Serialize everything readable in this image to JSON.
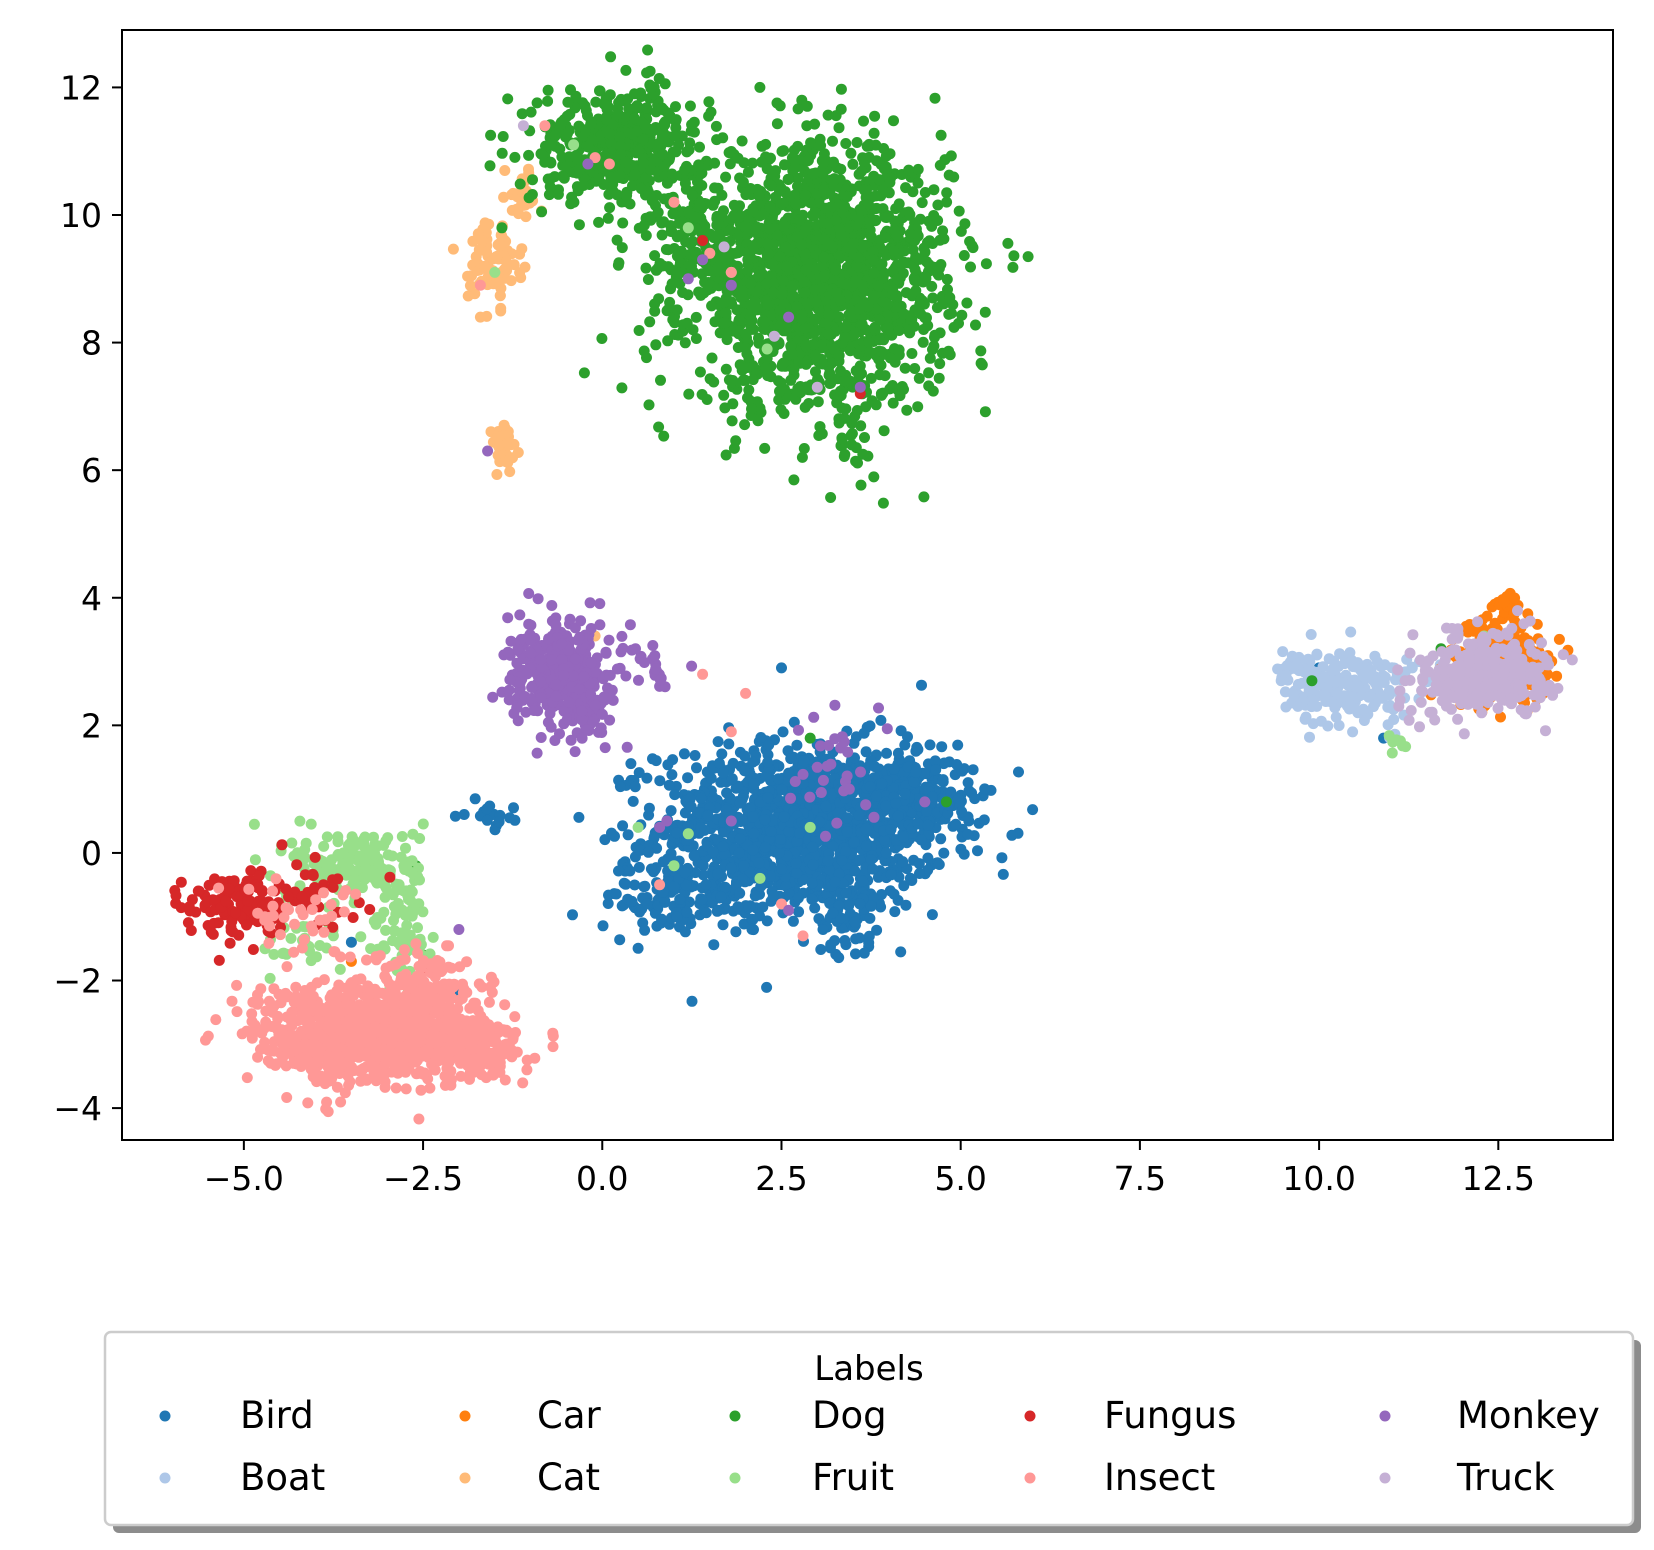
{
  "chart_data": {
    "type": "scatter",
    "title": "",
    "xlabel": "",
    "ylabel": "",
    "xlim": [
      -6.7,
      14.1
    ],
    "ylim": [
      -4.5,
      12.9
    ],
    "xticks": [
      -5.0,
      -2.5,
      0.0,
      2.5,
      5.0,
      7.5,
      10.0,
      12.5
    ],
    "xtick_labels": [
      "−5.0",
      "−2.5",
      "0.0",
      "2.5",
      "5.0",
      "7.5",
      "10.0",
      "12.5"
    ],
    "yticks": [
      -4,
      -2,
      0,
      2,
      4,
      6,
      8,
      10,
      12
    ],
    "ytick_labels": [
      "−4",
      "−2",
      "0",
      "2",
      "4",
      "6",
      "8",
      "10",
      "12"
    ],
    "grid": false,
    "legend": {
      "title": "Labels",
      "placement": "below-plot",
      "columns": 5
    },
    "series": [
      {
        "name": "Bird",
        "color": "#1f77b4",
        "clusters": [
          {
            "cx": 2.8,
            "cy": 0.4,
            "sx": 1.0,
            "sy": 0.65,
            "n": 1300
          },
          {
            "cx": 4.3,
            "cy": 0.9,
            "sx": 0.45,
            "sy": 0.3,
            "n": 220
          },
          {
            "cx": 1.2,
            "cy": -0.7,
            "sx": 0.6,
            "sy": 0.3,
            "n": 140
          },
          {
            "cx": 3.4,
            "cy": -1.0,
            "sx": 0.2,
            "sy": 0.3,
            "n": 50
          },
          {
            "cx": -1.6,
            "cy": 0.6,
            "sx": 0.15,
            "sy": 0.1,
            "n": 20
          }
        ],
        "points": [
          [
            -3.5,
            -1.4
          ],
          [
            10.0,
            2.9
          ],
          [
            10.9,
            1.8
          ],
          [
            0.4,
            1.4
          ],
          [
            2.5,
            2.9
          ],
          [
            -2.0,
            -2.2
          ]
        ]
      },
      {
        "name": "Boat",
        "color": "#aec7e8",
        "clusters": [
          {
            "cx": 10.4,
            "cy": 2.6,
            "sx": 0.45,
            "sy": 0.3,
            "n": 220
          },
          {
            "cx": 9.7,
            "cy": 2.95,
            "sx": 0.12,
            "sy": 0.08,
            "n": 20
          }
        ],
        "points": [
          [
            11.4,
            3.0
          ],
          [
            11.3,
            2.9
          ]
        ]
      },
      {
        "name": "Car",
        "color": "#ff7f0e",
        "clusters": [
          {
            "cx": 12.5,
            "cy": 3.0,
            "sx": 0.35,
            "sy": 0.3,
            "n": 260
          },
          {
            "cx": 12.6,
            "cy": 3.85,
            "sx": 0.12,
            "sy": 0.12,
            "n": 30
          }
        ],
        "points": [
          [
            0.3,
            10.8
          ],
          [
            -3.5,
            -1.7
          ]
        ]
      },
      {
        "name": "Cat",
        "color": "#ffbb78",
        "clusters": [
          {
            "cx": -1.5,
            "cy": 9.3,
            "sx": 0.18,
            "sy": 0.35,
            "n": 90
          },
          {
            "cx": -1.4,
            "cy": 6.3,
            "sx": 0.1,
            "sy": 0.2,
            "n": 45
          },
          {
            "cx": -1.1,
            "cy": 10.3,
            "sx": 0.12,
            "sy": 0.25,
            "n": 20
          }
        ],
        "points": [
          [
            -0.1,
            3.4
          ],
          [
            -1.7,
            8.4
          ]
        ]
      },
      {
        "name": "Dog",
        "color": "#2ca02c",
        "clusters": [
          {
            "cx": 3.0,
            "cy": 9.0,
            "sx": 0.9,
            "sy": 1.0,
            "n": 1800
          },
          {
            "cx": 0.2,
            "cy": 11.1,
            "sx": 0.6,
            "sy": 0.45,
            "n": 450
          },
          {
            "cx": 1.3,
            "cy": 9.6,
            "sx": 0.35,
            "sy": 0.5,
            "n": 120
          },
          {
            "cx": 3.5,
            "cy": 6.3,
            "sx": 0.08,
            "sy": 0.25,
            "n": 8
          }
        ],
        "points": [
          [
            -1.4,
            9.8
          ],
          [
            -2.6,
            -0.2
          ],
          [
            4.8,
            0.8
          ],
          [
            9.9,
            2.7
          ],
          [
            11.7,
            3.2
          ],
          [
            2.9,
            1.8
          ],
          [
            -2.5,
            -1.6
          ]
        ]
      },
      {
        "name": "Fruit",
        "color": "#98df8a",
        "clusters": [
          {
            "cx": -3.4,
            "cy": -0.2,
            "sx": 0.45,
            "sy": 0.3,
            "n": 170
          },
          {
            "cx": -2.8,
            "cy": -1.2,
            "sx": 0.2,
            "sy": 0.5,
            "n": 70
          },
          {
            "cx": -4.2,
            "cy": -1.3,
            "sx": 0.3,
            "sy": 0.35,
            "n": 30
          },
          {
            "cx": 11.1,
            "cy": 1.7,
            "sx": 0.1,
            "sy": 0.1,
            "n": 8
          }
        ],
        "points": [
          [
            -1.5,
            9.1
          ],
          [
            1.2,
            9.8
          ],
          [
            2.3,
            7.9
          ],
          [
            1.2,
            0.3
          ],
          [
            2.9,
            0.4
          ],
          [
            0.5,
            0.4
          ],
          [
            1.0,
            -0.2
          ],
          [
            12.3,
            3.4
          ],
          [
            -0.4,
            11.1
          ],
          [
            2.2,
            -0.4
          ],
          [
            1.8,
            9.1
          ]
        ]
      },
      {
        "name": "Fungus",
        "color": "#d62728",
        "clusters": [
          {
            "cx": -5.1,
            "cy": -0.8,
            "sx": 0.35,
            "sy": 0.25,
            "n": 140
          },
          {
            "cx": -4.0,
            "cy": -0.6,
            "sx": 0.35,
            "sy": 0.3,
            "n": 25
          }
        ],
        "points": [
          [
            3.6,
            7.2
          ],
          [
            1.4,
            9.6
          ],
          [
            -2.5,
            -1.8
          ]
        ]
      },
      {
        "name": "Insect",
        "color": "#ff9896",
        "clusters": [
          {
            "cx": -3.3,
            "cy": -2.8,
            "sx": 0.75,
            "sy": 0.4,
            "n": 900
          },
          {
            "cx": -1.8,
            "cy": -3.0,
            "sx": 0.35,
            "sy": 0.25,
            "n": 200
          },
          {
            "cx": -2.5,
            "cy": -2.0,
            "sx": 0.3,
            "sy": 0.3,
            "n": 80
          },
          {
            "cx": -4.2,
            "cy": -1.0,
            "sx": 0.5,
            "sy": 0.4,
            "n": 40
          }
        ],
        "points": [
          [
            -0.8,
            11.4
          ],
          [
            -0.1,
            10.9
          ],
          [
            0.1,
            10.8
          ],
          [
            1.0,
            10.2
          ],
          [
            1.8,
            9.1
          ],
          [
            1.5,
            9.4
          ],
          [
            1.4,
            2.8
          ],
          [
            2.0,
            2.5
          ],
          [
            2.8,
            -1.3
          ],
          [
            2.5,
            -0.8
          ],
          [
            0.8,
            -0.5
          ],
          [
            -1.7,
            8.9
          ],
          [
            1.8,
            1.9
          ]
        ]
      },
      {
        "name": "Monkey",
        "color": "#9467bd",
        "clusters": [
          {
            "cx": -0.6,
            "cy": 2.8,
            "sx": 0.35,
            "sy": 0.4,
            "n": 350
          },
          {
            "cx": -0.15,
            "cy": 2.1,
            "sx": 0.12,
            "sy": 0.2,
            "n": 40
          },
          {
            "cx": 0.6,
            "cy": 2.9,
            "sx": 0.2,
            "sy": 0.25,
            "n": 25
          },
          {
            "cx": 3.2,
            "cy": 1.4,
            "sx": 0.25,
            "sy": 0.5,
            "n": 30
          }
        ],
        "points": [
          [
            -1.6,
            6.3
          ],
          [
            -0.2,
            10.8
          ],
          [
            1.2,
            9.0
          ],
          [
            1.8,
            8.9
          ],
          [
            2.6,
            8.4
          ],
          [
            3.6,
            7.3
          ],
          [
            1.4,
            9.3
          ],
          [
            -2.0,
            -1.2
          ],
          [
            1.8,
            0.5
          ],
          [
            2.6,
            -0.9
          ],
          [
            4.5,
            0.8
          ],
          [
            0.9,
            0.5
          ],
          [
            0.8,
            0.4
          ]
        ]
      },
      {
        "name": "Truck",
        "color": "#c5b0d5",
        "clusters": [
          {
            "cx": 12.4,
            "cy": 2.85,
            "sx": 0.4,
            "sy": 0.3,
            "n": 350
          },
          {
            "cx": 11.7,
            "cy": 2.5,
            "sx": 0.25,
            "sy": 0.25,
            "n": 40
          }
        ],
        "points": [
          [
            -1.1,
            11.4
          ],
          [
            1.7,
            9.5
          ],
          [
            3.0,
            7.3
          ],
          [
            2.4,
            8.1
          ],
          [
            11.2,
            2.7
          ]
        ]
      }
    ]
  }
}
